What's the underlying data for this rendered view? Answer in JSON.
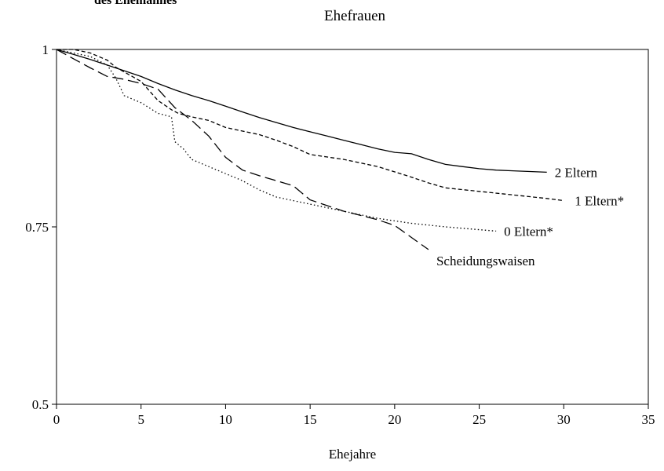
{
  "header_fragment": "des Ehemannes",
  "chart_data": {
    "type": "line",
    "title": "Ehefrauen",
    "xlabel": "Ehejahre",
    "ylabel": "",
    "xlim": [
      0,
      35
    ],
    "ylim": [
      0.5,
      1
    ],
    "x_ticks": [
      0,
      5,
      10,
      15,
      20,
      25,
      30,
      35
    ],
    "y_ticks": [
      0.5,
      0.75,
      1
    ],
    "y_tick_labels": [
      "0.5",
      "0.75",
      "1"
    ],
    "grid": false,
    "legend": "inline labels at line ends",
    "series": [
      {
        "name": "2 Eltern",
        "style": "solid",
        "x": [
          0,
          1,
          2,
          3,
          4,
          5,
          6,
          7,
          8,
          9,
          10,
          11,
          12,
          13,
          14,
          15,
          16,
          17,
          18,
          19,
          20,
          21,
          22,
          23,
          24,
          25,
          26,
          27,
          28,
          29
        ],
        "y": [
          1,
          0.993,
          0.986,
          0.978,
          0.97,
          0.962,
          0.952,
          0.943,
          0.935,
          0.928,
          0.92,
          0.912,
          0.904,
          0.897,
          0.89,
          0.884,
          0.878,
          0.872,
          0.866,
          0.86,
          0.855,
          0.853,
          0.845,
          0.838,
          0.835,
          0.832,
          0.83,
          0.829,
          0.828,
          0.827
        ]
      },
      {
        "name": "1 Eltern*",
        "style": "dashed",
        "x": [
          0,
          1,
          2,
          3,
          3.5,
          5,
          6,
          6.8,
          7.2,
          8,
          9,
          10,
          11,
          12,
          13,
          14,
          15,
          17,
          19,
          21,
          22,
          23,
          25,
          27,
          29,
          30
        ],
        "y": [
          1,
          1,
          0.995,
          0.985,
          0.975,
          0.955,
          0.928,
          0.915,
          0.91,
          0.905,
          0.9,
          0.89,
          0.885,
          0.88,
          0.872,
          0.863,
          0.852,
          0.845,
          0.835,
          0.82,
          0.812,
          0.805,
          0.8,
          0.795,
          0.79,
          0.787
        ]
      },
      {
        "name": "0 Eltern*",
        "style": "dotted",
        "x": [
          0,
          1,
          2,
          3,
          3.5,
          4,
          5,
          6,
          6.8,
          7,
          7.5,
          8,
          9,
          10,
          11,
          12,
          13,
          15,
          17,
          19,
          21,
          23,
          25,
          26
        ],
        "y": [
          1,
          0.995,
          0.99,
          0.978,
          0.96,
          0.935,
          0.925,
          0.91,
          0.905,
          0.87,
          0.86,
          0.845,
          0.835,
          0.825,
          0.815,
          0.802,
          0.792,
          0.782,
          0.772,
          0.762,
          0.755,
          0.75,
          0.746,
          0.744
        ]
      },
      {
        "name": "Scheidungswaisen",
        "style": "longdash",
        "x": [
          0,
          1,
          2,
          3,
          4,
          5,
          6,
          7,
          8,
          9,
          10,
          11,
          12,
          13,
          14,
          15,
          16,
          17,
          18,
          19,
          20,
          21,
          22
        ],
        "y": [
          1,
          0.987,
          0.974,
          0.962,
          0.958,
          0.952,
          0.944,
          0.918,
          0.9,
          0.878,
          0.848,
          0.83,
          0.822,
          0.815,
          0.808,
          0.788,
          0.78,
          0.772,
          0.766,
          0.76,
          0.752,
          0.735,
          0.718
        ]
      }
    ]
  }
}
